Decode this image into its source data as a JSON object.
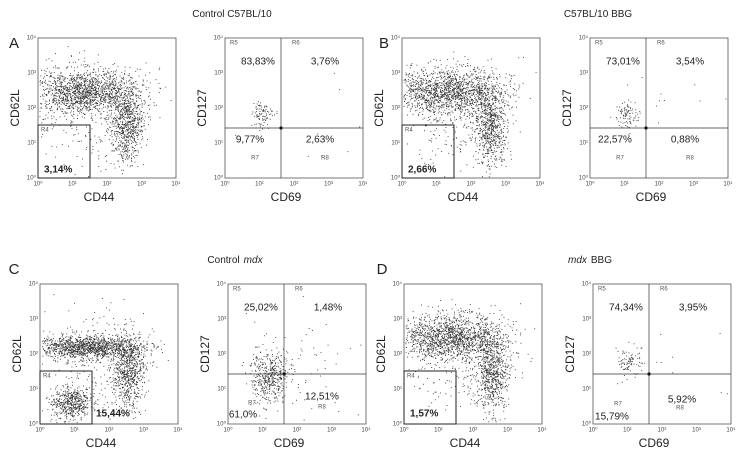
{
  "axis_ticks": [
    "10⁰",
    "10¹",
    "10²",
    "10³",
    "10⁴"
  ],
  "panels": [
    {
      "letter": "A",
      "title": [
        {
          "text": "Control C57BL/10"
        }
      ],
      "left_plot": {
        "y_label": "CD62L",
        "x_label": "CD44",
        "gate": "R4",
        "gate_percent": "3,14%"
      },
      "right_plot": {
        "y_label": "CD127",
        "x_label": "CD69",
        "quadrants": [
          {
            "gate": "R5",
            "percent": "83,83%"
          },
          {
            "gate": "R6",
            "percent": "3,76%"
          },
          {
            "gate": "R7",
            "percent": "9,77%"
          },
          {
            "gate": "R8",
            "percent": "2,63%"
          }
        ]
      }
    },
    {
      "letter": "B",
      "title": [
        {
          "text": "C57BL/10 BBG"
        }
      ],
      "left_plot": {
        "y_label": "CD62L",
        "x_label": "CD44",
        "gate": "R4",
        "gate_percent": "2,66%"
      },
      "right_plot": {
        "y_label": "CD127",
        "x_label": "CD69",
        "quadrants": [
          {
            "gate": "R5",
            "percent": "73,01%"
          },
          {
            "gate": "R6",
            "percent": "3,54%"
          },
          {
            "gate": "R7",
            "percent": "22,57%"
          },
          {
            "gate": "R8",
            "percent": "0,88%"
          }
        ]
      }
    },
    {
      "letter": "C",
      "title": [
        {
          "text": "Control"
        },
        {
          "text": "mdx",
          "style": "italic"
        }
      ],
      "left_plot": {
        "y_label": "CD62L",
        "x_label": "CD44",
        "gate": "R4",
        "gate_percent": "15,44%"
      },
      "right_plot": {
        "y_label": "CD127",
        "x_label": "CD69",
        "quadrants": [
          {
            "gate": "R5",
            "percent": "25,02%"
          },
          {
            "gate": "R6",
            "percent": "1,48%"
          },
          {
            "gate": "R7",
            "percent": "61,0%"
          },
          {
            "gate": "R8",
            "percent": "12,51%"
          }
        ]
      }
    },
    {
      "letter": "D",
      "title": [
        {
          "text": "mdx",
          "style": "italic"
        },
        {
          "text": "BBG"
        }
      ],
      "left_plot": {
        "y_label": "CD62L",
        "x_label": "CD44",
        "gate": "R4",
        "gate_percent": "1,57%"
      },
      "right_plot": {
        "y_label": "CD127",
        "x_label": "CD69",
        "quadrants": [
          {
            "gate": "R5",
            "percent": "74,34%"
          },
          {
            "gate": "R6",
            "percent": "3,95%"
          },
          {
            "gate": "R7",
            "percent": "15,79%"
          },
          {
            "gate": "R8",
            "percent": "5,92%"
          }
        ]
      }
    }
  ]
}
